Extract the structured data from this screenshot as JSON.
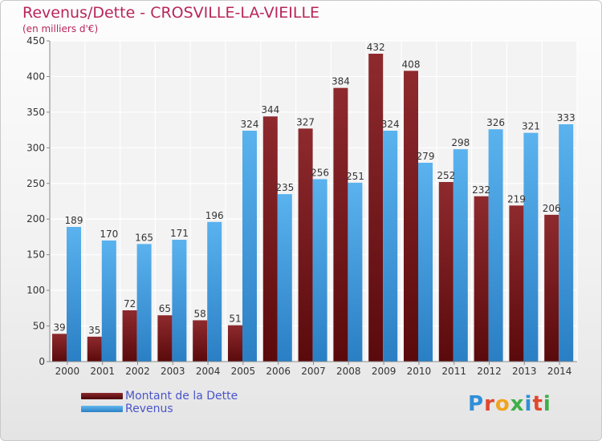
{
  "title": "Revenus/Dette - CROSVILLE-LA-VIEILLE",
  "subtitle": "(en milliers d'€)",
  "logo": {
    "text": "Proxiti",
    "colors": [
      "#2f8fd8",
      "#e2462f",
      "#f2a41e",
      "#3fae49",
      "#2f8fd8",
      "#e2462f",
      "#3fae49"
    ]
  },
  "colors": {
    "debt": "#7a1a1e",
    "revenue": "#3f9ee0",
    "title": "#b8265a",
    "legend_text": "#4a55c8"
  },
  "chart_data": {
    "type": "bar",
    "categories": [
      "2000",
      "2001",
      "2002",
      "2003",
      "2004",
      "2005",
      "2006",
      "2007",
      "2008",
      "2009",
      "2010",
      "2011",
      "2012",
      "2013",
      "2014"
    ],
    "series": [
      {
        "name": "Montant de la Dette",
        "values": [
          39,
          35,
          72,
          65,
          58,
          51,
          344,
          327,
          384,
          432,
          408,
          252,
          232,
          219,
          206
        ]
      },
      {
        "name": "Revenus",
        "values": [
          189,
          170,
          165,
          171,
          196,
          324,
          235,
          256,
          251,
          324,
          279,
          298,
          326,
          321,
          333
        ]
      }
    ],
    "ylim": [
      0,
      450
    ],
    "yticks": [
      0,
      50,
      100,
      150,
      200,
      250,
      300,
      350,
      400,
      450
    ],
    "grid": true,
    "legend": "bottom-left"
  }
}
